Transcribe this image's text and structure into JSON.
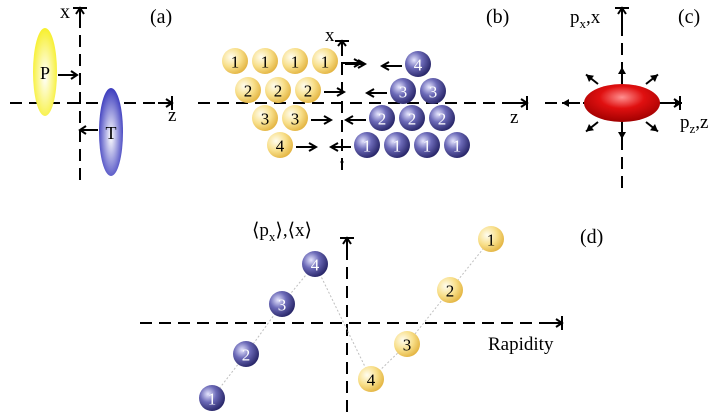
{
  "panels": {
    "a": {
      "tag": "(a)",
      "x_axis": "x",
      "z_axis": "z",
      "projectile": "P",
      "target": "T"
    },
    "b": {
      "tag": "(b)",
      "x_axis": "x",
      "z_axis": "z",
      "projectile_rows": [
        [
          "1",
          "1",
          "1",
          "1"
        ],
        [
          "2",
          "2",
          "2"
        ],
        [
          "3",
          "3"
        ],
        [
          "4"
        ]
      ],
      "target_rows": [
        [
          "4"
        ],
        [
          "3",
          "3"
        ],
        [
          "2",
          "2",
          "2"
        ],
        [
          "1",
          "1",
          "1",
          "1"
        ]
      ]
    },
    "c": {
      "tag": "(c)",
      "vertical_axis": "p",
      "vertical_sub": "x",
      "vertical_suffix": ",x",
      "horizontal_axis": "p",
      "horizontal_sub": "z",
      "horizontal_suffix": ",z"
    },
    "d": {
      "tag": "(d)",
      "y_axis": "⟨p",
      "y_axis_sub": "x",
      "y_axis_suffix": "⟩,⟨x⟩",
      "x_axis": "Rapidity",
      "target_points": [
        "1",
        "2",
        "3",
        "4"
      ],
      "projectile_points": [
        "4",
        "3",
        "2",
        "1"
      ]
    }
  },
  "colors": {
    "projectile_yellow": "#f6d56a",
    "target_blue": "#3d3a8a",
    "fireball_red": "#e01010"
  }
}
